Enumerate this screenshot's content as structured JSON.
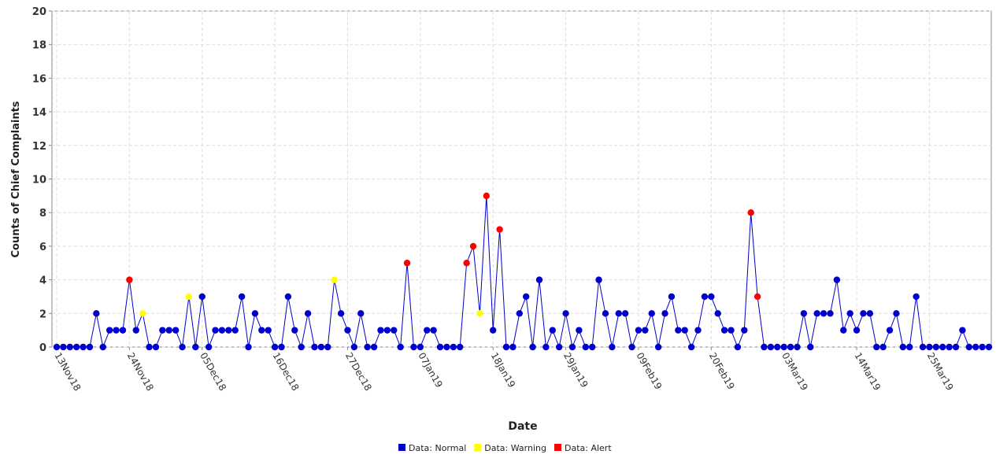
{
  "chart_data": {
    "type": "line",
    "x_label": "Date",
    "y_label": "Counts of Chief Complaints",
    "categories": [
      "13Nov18",
      null,
      null,
      null,
      null,
      null,
      null,
      null,
      null,
      null,
      null,
      "24Nov18",
      null,
      null,
      null,
      null,
      null,
      null,
      null,
      null,
      null,
      null,
      "05Dec18",
      null,
      null,
      null,
      null,
      null,
      null,
      null,
      null,
      null,
      null,
      "16Dec18",
      null,
      null,
      null,
      null,
      null,
      null,
      null,
      null,
      null,
      null,
      "27Dec18",
      null,
      null,
      null,
      null,
      null,
      null,
      null,
      null,
      null,
      null,
      "07Jan19",
      null,
      null,
      null,
      null,
      null,
      null,
      null,
      null,
      null,
      null,
      "18Jan19",
      null,
      null,
      null,
      null,
      null,
      null,
      null,
      null,
      null,
      null,
      "29Jan19",
      null,
      null,
      null,
      null,
      null,
      null,
      null,
      null,
      null,
      null,
      "09Feb19",
      null,
      null,
      null,
      null,
      null,
      null,
      null,
      null,
      null,
      null,
      "20Feb19",
      null,
      null,
      null,
      null,
      null,
      null,
      null,
      null,
      null,
      null,
      "03Mar19",
      null,
      null,
      null,
      null,
      null,
      null,
      null,
      null,
      null,
      null,
      "14Mar19",
      null,
      null,
      null,
      null,
      null,
      null,
      null,
      null,
      null,
      null,
      "25Mar19",
      null,
      null,
      null,
      null,
      null,
      null,
      null,
      null,
      null
    ],
    "values": [
      0,
      0,
      0,
      0,
      0,
      0,
      2,
      0,
      1,
      1,
      1,
      4,
      1,
      2,
      0,
      0,
      1,
      1,
      1,
      0,
      3,
      0,
      3,
      0,
      1,
      1,
      1,
      1,
      3,
      0,
      2,
      1,
      1,
      0,
      0,
      3,
      1,
      0,
      2,
      0,
      0,
      0,
      4,
      2,
      1,
      0,
      2,
      0,
      0,
      1,
      1,
      1,
      0,
      5,
      0,
      0,
      1,
      1,
      0,
      0,
      0,
      0,
      5,
      6,
      2,
      9,
      1,
      7,
      0,
      0,
      2,
      3,
      0,
      4,
      0,
      1,
      0,
      2,
      0,
      1,
      0,
      0,
      4,
      2,
      0,
      2,
      2,
      0,
      1,
      1,
      2,
      0,
      2,
      3,
      1,
      1,
      0,
      1,
      3,
      3,
      2,
      1,
      1,
      0,
      1,
      8,
      3,
      0,
      0,
      0,
      0,
      0,
      0,
      2,
      0,
      2,
      2,
      2,
      4,
      1,
      2,
      1,
      2,
      2,
      0,
      0,
      1,
      2,
      0,
      0,
      3,
      0,
      0,
      0,
      0,
      0,
      0,
      1,
      0,
      0,
      0,
      0
    ],
    "status": [
      0,
      0,
      0,
      0,
      0,
      0,
      0,
      0,
      0,
      0,
      0,
      2,
      0,
      1,
      0,
      0,
      0,
      0,
      0,
      0,
      1,
      0,
      0,
      0,
      0,
      0,
      0,
      0,
      0,
      0,
      0,
      0,
      0,
      0,
      0,
      0,
      0,
      0,
      0,
      0,
      0,
      0,
      1,
      0,
      0,
      0,
      0,
      0,
      0,
      0,
      0,
      0,
      0,
      2,
      0,
      0,
      0,
      0,
      0,
      0,
      0,
      0,
      2,
      2,
      1,
      2,
      0,
      2,
      0,
      0,
      0,
      0,
      0,
      0,
      0,
      0,
      0,
      0,
      0,
      0,
      0,
      0,
      0,
      0,
      0,
      0,
      0,
      0,
      0,
      0,
      0,
      0,
      0,
      0,
      0,
      0,
      0,
      0,
      0,
      0,
      0,
      0,
      0,
      0,
      0,
      2,
      2,
      0,
      0,
      0,
      0,
      0,
      0,
      0,
      0,
      0,
      0,
      0,
      0,
      0,
      0,
      0,
      0,
      0,
      0,
      0,
      0,
      0,
      0,
      0,
      0,
      0,
      0,
      0,
      0,
      0,
      0,
      0,
      0,
      0,
      0,
      0
    ],
    "line_color": "#0000cc",
    "series": [
      {
        "name": "Data: Normal",
        "color": "#0000cc"
      },
      {
        "name": "Data: Warning",
        "color": "#ffff00"
      },
      {
        "name": "Data: Alert",
        "color": "#ff0000"
      }
    ],
    "ylim": [
      0,
      20
    ],
    "yticks": [
      0,
      2,
      4,
      6,
      8,
      10,
      12,
      14,
      16,
      18,
      20
    ],
    "grid": true
  }
}
